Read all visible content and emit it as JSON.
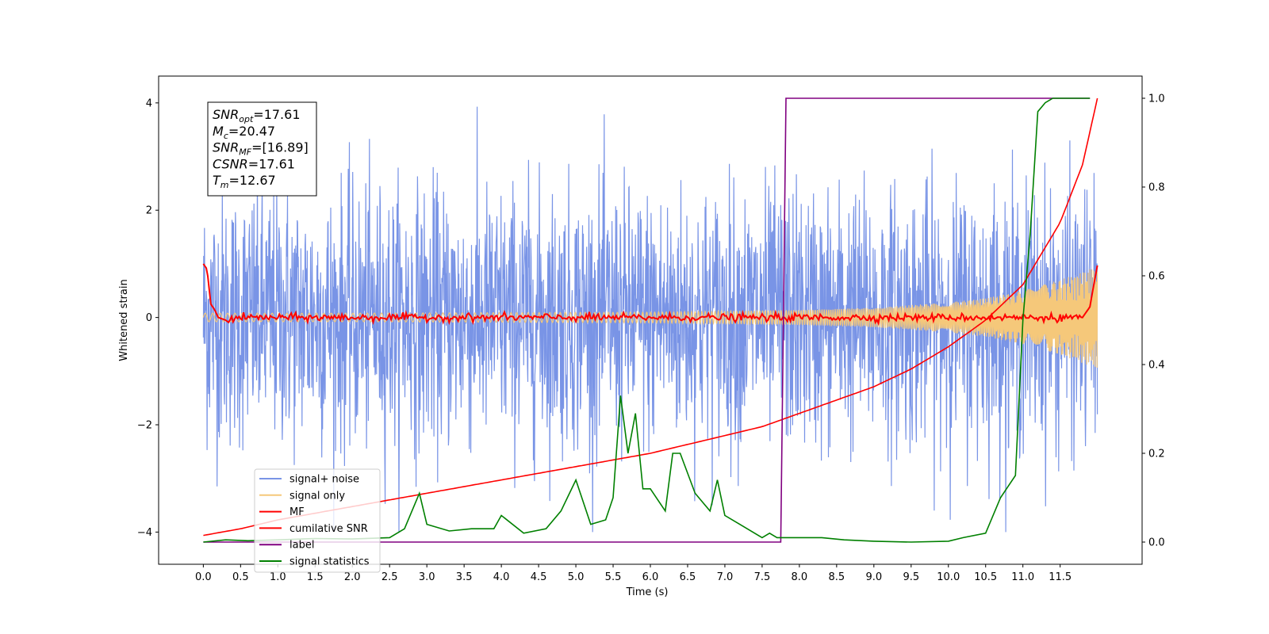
{
  "chart_data": {
    "type": "line",
    "xlabel": "Time (s)",
    "ylabel": "Whitened strain",
    "xlim": [
      -0.6,
      12.6
    ],
    "ylim": [
      -4.6,
      4.5
    ],
    "y2lim": [
      -0.05,
      1.05
    ],
    "x_ticks": [
      "0.0",
      "0.5",
      "1.0",
      "1.5",
      "2.0",
      "2.5",
      "3.0",
      "3.5",
      "4.0",
      "4.5",
      "5.0",
      "5.5",
      "6.0",
      "6.5",
      "7.0",
      "7.5",
      "8.0",
      "8.5",
      "9.0",
      "9.5",
      "10.0",
      "10.5",
      "11.0",
      "11.5"
    ],
    "y_ticks": [
      "−4",
      "−2",
      "0",
      "2",
      "4"
    ],
    "y2_ticks": [
      "0.0",
      "0.2",
      "0.4",
      "0.6",
      "0.8",
      "1.0"
    ],
    "legend_position": "lower-left",
    "annotation": [
      {
        "sym": "SNR",
        "sub": "opt",
        "value": "=17.61"
      },
      {
        "sym": "M",
        "sub": "c",
        "value": "=20.47"
      },
      {
        "sym": "SNR",
        "sub": "MF",
        "value": "=[16.89]"
      },
      {
        "sym": "CSNR",
        "sub": "",
        "value": "=17.61"
      },
      {
        "sym": "T",
        "sub": "m",
        "value": "=12.67"
      }
    ],
    "series": [
      {
        "name": "signal+ noise",
        "color": "#7994e6",
        "axis": "left",
        "description_values": {
          "x_range": [
            0,
            12
          ],
          "approx_std": 1.2,
          "approx_range": [
            -4.0,
            4.1
          ]
        }
      },
      {
        "name": "signal only",
        "color": "#f5c87a",
        "axis": "left",
        "envelope": {
          "x": [
            0,
            2,
            4,
            6,
            8,
            9,
            10,
            10.5,
            11,
            11.5,
            12
          ],
          "amp": [
            0.08,
            0.08,
            0.09,
            0.1,
            0.14,
            0.18,
            0.28,
            0.36,
            0.5,
            0.7,
            0.95
          ]
        }
      },
      {
        "name": "MF",
        "color": "#ff0000",
        "axis": "left",
        "x": [
          0,
          0.05,
          0.1,
          0.15,
          0.2,
          0.3,
          0.5,
          1.0,
          2.0,
          3.0,
          4.0,
          5.0,
          6.0,
          7.0,
          8.0,
          9.0,
          10.0,
          11.0,
          11.8,
          11.9,
          11.95,
          12.0
        ],
        "y": [
          1.0,
          0.9,
          0.25,
          0.15,
          0.0,
          -0.05,
          0.0,
          0.0,
          0.0,
          0.0,
          0.0,
          0.0,
          0.0,
          0.0,
          0.0,
          0.0,
          0.0,
          0.0,
          0.0,
          0.2,
          0.6,
          0.97
        ]
      },
      {
        "name": "cumilative SNR",
        "color": "#ff0000",
        "axis": "right",
        "x": [
          0,
          0.5,
          1,
          2,
          3,
          4,
          5,
          6,
          7,
          7.5,
          8,
          8.5,
          9,
          9.5,
          10,
          10.5,
          11,
          11.5,
          11.8,
          12.0
        ],
        "y": [
          0.015,
          0.03,
          0.05,
          0.08,
          0.11,
          0.14,
          0.17,
          0.2,
          0.24,
          0.26,
          0.29,
          0.32,
          0.35,
          0.39,
          0.44,
          0.5,
          0.58,
          0.72,
          0.85,
          1.0
        ]
      },
      {
        "name": "label",
        "color": "#800080",
        "axis": "right",
        "x": [
          0,
          7.75,
          7.82,
          11.9
        ],
        "y": [
          0.0,
          0.0,
          1.0,
          1.0
        ]
      },
      {
        "name": "signal statistics",
        "color": "#008000",
        "axis": "right",
        "x": [
          0,
          0.3,
          0.6,
          1.0,
          1.5,
          2.0,
          2.5,
          2.7,
          2.9,
          3.0,
          3.3,
          3.6,
          3.9,
          4.0,
          4.3,
          4.6,
          4.8,
          5.0,
          5.2,
          5.4,
          5.5,
          5.6,
          5.7,
          5.8,
          5.9,
          6.0,
          6.2,
          6.3,
          6.4,
          6.6,
          6.8,
          6.9,
          7.0,
          7.2,
          7.5,
          7.6,
          7.7,
          8.0,
          8.3,
          8.6,
          9.0,
          9.5,
          10.0,
          10.2,
          10.5,
          10.7,
          10.9,
          11.0,
          11.1,
          11.2,
          11.3,
          11.4,
          11.5,
          11.9
        ],
        "y": [
          0.0,
          0.005,
          0.003,
          0.005,
          0.008,
          0.007,
          0.01,
          0.03,
          0.11,
          0.04,
          0.025,
          0.03,
          0.03,
          0.06,
          0.02,
          0.03,
          0.07,
          0.14,
          0.04,
          0.05,
          0.1,
          0.33,
          0.2,
          0.29,
          0.12,
          0.12,
          0.07,
          0.2,
          0.2,
          0.11,
          0.07,
          0.14,
          0.06,
          0.04,
          0.01,
          0.02,
          0.01,
          0.01,
          0.01,
          0.005,
          0.002,
          0.0,
          0.002,
          0.01,
          0.02,
          0.1,
          0.15,
          0.5,
          0.7,
          0.97,
          0.99,
          1.0,
          1.0,
          1.0
        ]
      }
    ]
  }
}
